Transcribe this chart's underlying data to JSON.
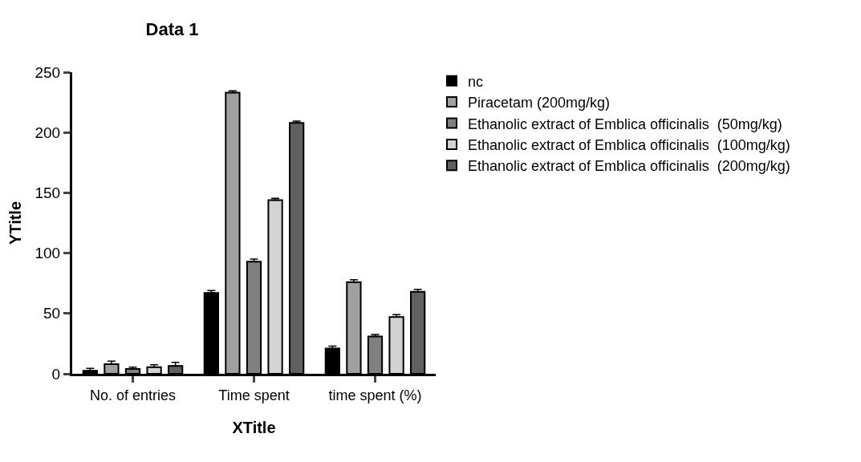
{
  "chart_data": {
    "type": "bar",
    "title": "Data 1",
    "xlabel": "XTitle",
    "ylabel": "YTitle",
    "categories": [
      "No. of entries",
      "Time spent",
      "time spent (%)"
    ],
    "series": [
      {
        "name": "nc",
        "color": "#000000",
        "values": [
          2.5,
          67,
          21
        ],
        "errors": [
          [
            2.5,
            4.5
          ],
          [
            67,
            69
          ],
          [
            21,
            23
          ]
        ]
      },
      {
        "name": "Piracetam (200mg/kg)",
        "color": "#a0a0a0",
        "values": [
          8,
          233,
          76
        ],
        "errors": [
          [
            8,
            10.5
          ],
          [
            233,
            234.5
          ],
          [
            76,
            78
          ]
        ]
      },
      {
        "name": "Ethanolic extract of Emblica officinalis  (50mg/kg)",
        "color": "#808080",
        "values": [
          4,
          93,
          31
        ],
        "errors": [
          [
            4,
            5.5
          ],
          [
            93,
            95
          ],
          [
            31,
            32.5
          ]
        ]
      },
      {
        "name": "Ethanolic extract of Emblica officinalis  (100mg/kg)",
        "color": "#d3d3d3",
        "values": [
          5.5,
          144,
          47
        ],
        "errors": [
          [
            5.5,
            7.5
          ],
          [
            144,
            145.5
          ],
          [
            47,
            49
          ]
        ]
      },
      {
        "name": "Ethanolic extract of Emblica officinalis  (200mg/kg)",
        "color": "#606060",
        "values": [
          6.5,
          208,
          68
        ],
        "errors": [
          [
            6.5,
            9.5
          ],
          [
            208,
            209.5
          ],
          [
            68,
            70
          ]
        ]
      }
    ],
    "ylim": [
      0,
      250
    ],
    "yticks": [
      0,
      50,
      100,
      150,
      200,
      250
    ],
    "grid": false,
    "legend": "right"
  }
}
